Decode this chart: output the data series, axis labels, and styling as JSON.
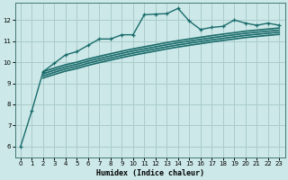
{
  "bg_color": "#cce8e8",
  "grid_color": "#aacccc",
  "line_color": "#1a6b6b",
  "xlabel": "Humidex (Indice chaleur)",
  "ylim": [
    5.5,
    12.8
  ],
  "xlim": [
    -0.5,
    23.5
  ],
  "yticks": [
    6,
    7,
    8,
    9,
    10,
    11,
    12
  ],
  "xticks": [
    0,
    1,
    2,
    3,
    4,
    5,
    6,
    7,
    8,
    9,
    10,
    11,
    12,
    13,
    14,
    15,
    16,
    17,
    18,
    19,
    20,
    21,
    22,
    23
  ],
  "series": [
    {
      "x": [
        0,
        1,
        2,
        3,
        4,
        5,
        6,
        7,
        8,
        9,
        10,
        11,
        12,
        13,
        14,
        15,
        16,
        17,
        18,
        19,
        20,
        21,
        22,
        23
      ],
      "y": [
        6.0,
        7.7,
        9.55,
        9.95,
        10.35,
        10.5,
        10.8,
        11.1,
        11.1,
        11.3,
        11.3,
        12.25,
        12.28,
        12.3,
        12.55,
        11.95,
        11.55,
        11.65,
        11.7,
        12.0,
        11.85,
        11.75,
        11.85,
        11.75
      ],
      "marker": true,
      "lw": 1.0
    },
    {
      "x": [
        2,
        3,
        4,
        5,
        6,
        7,
        8,
        9,
        10,
        11,
        12,
        13,
        14,
        15,
        16,
        17,
        18,
        19,
        20,
        21,
        22,
        23
      ],
      "y": [
        9.55,
        9.72,
        9.88,
        10.0,
        10.15,
        10.28,
        10.4,
        10.52,
        10.63,
        10.73,
        10.83,
        10.93,
        11.02,
        11.1,
        11.18,
        11.26,
        11.33,
        11.4,
        11.47,
        11.52,
        11.57,
        11.62
      ],
      "marker": false,
      "lw": 1.2
    },
    {
      "x": [
        2,
        3,
        4,
        5,
        6,
        7,
        8,
        9,
        10,
        11,
        12,
        13,
        14,
        15,
        16,
        17,
        18,
        19,
        20,
        21,
        22,
        23
      ],
      "y": [
        9.45,
        9.62,
        9.78,
        9.9,
        10.05,
        10.18,
        10.3,
        10.42,
        10.53,
        10.63,
        10.73,
        10.83,
        10.92,
        11.0,
        11.08,
        11.16,
        11.23,
        11.3,
        11.37,
        11.42,
        11.47,
        11.52
      ],
      "marker": false,
      "lw": 1.2
    },
    {
      "x": [
        2,
        3,
        4,
        5,
        6,
        7,
        8,
        9,
        10,
        11,
        12,
        13,
        14,
        15,
        16,
        17,
        18,
        19,
        20,
        21,
        22,
        23
      ],
      "y": [
        9.35,
        9.52,
        9.68,
        9.8,
        9.95,
        10.08,
        10.2,
        10.32,
        10.43,
        10.53,
        10.63,
        10.73,
        10.82,
        10.9,
        10.98,
        11.06,
        11.13,
        11.2,
        11.27,
        11.32,
        11.37,
        11.42
      ],
      "marker": false,
      "lw": 1.2
    },
    {
      "x": [
        2,
        3,
        4,
        5,
        6,
        7,
        8,
        9,
        10,
        11,
        12,
        13,
        14,
        15,
        16,
        17,
        18,
        19,
        20,
        21,
        22,
        23
      ],
      "y": [
        9.25,
        9.42,
        9.58,
        9.7,
        9.85,
        9.98,
        10.1,
        10.22,
        10.33,
        10.43,
        10.53,
        10.63,
        10.72,
        10.8,
        10.88,
        10.96,
        11.03,
        11.1,
        11.17,
        11.22,
        11.27,
        11.32
      ],
      "marker": false,
      "lw": 1.2
    }
  ]
}
